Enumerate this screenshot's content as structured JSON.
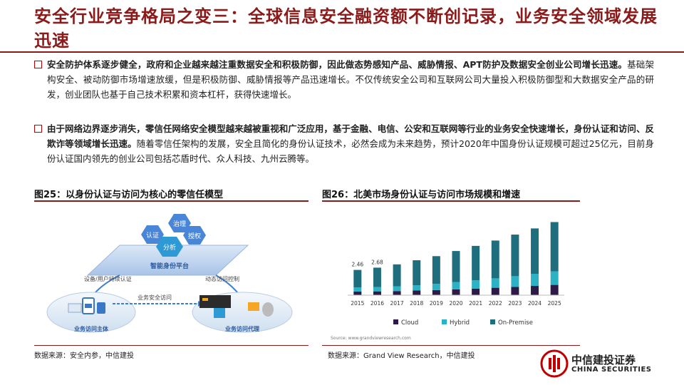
{
  "header": {
    "title": "安全行业竞争格局之变三：全球信息安全融资额不断创记录，业务安全领域发展迅速"
  },
  "bullets": [
    {
      "bold": "安全防护体系逐步健全，政府和企业越来越注重数据安全和积极防御，因此做态势感知产品、威胁情报、APT防护及数据安全创业公司增长迅速。",
      "normal": "基础架构安全、被动防御市场增速放缓，但是积极防御、威胁情报等产品迅速增长。不仅传统安全公司和互联网公司大量投入积极防御型和大数据安全产品的研发，创业团队也基于自己技术积累和资本杠杆，获得快速增长。"
    },
    {
      "bold": "由于网络边界逐步消失，零信任网络安全模型越来越被重视和广泛应用，基于金融、电信、公安和互联网等行业的业务安全快速增长，身份认证和访问、反欺诈等领域增长迅速。",
      "normal": "随着零信任架构的发展，安全且简化的身份认证技术，必然会成为未来趋势，预计2020年中国身份认证规模可超过25亿元，目前身份认证国内领先的创业公司包括芯盾时代、众人科技、九州云腾等。"
    }
  ],
  "figure_left": {
    "title": "图25：以身份认证与访问为核心的零信任模型",
    "labels": {
      "govern": "治理",
      "auth": "认证",
      "authorize": "授权",
      "analyze": "分析",
      "platform": "智能身份平台",
      "device_user": "设备/用户持续认证",
      "dynamic": "动态访问控制",
      "business_access": "业务安全访问",
      "subject": "业务访问主体",
      "proxy": "业务访问代理"
    },
    "source": "数据来源：安全内参，中信建投"
  },
  "figure_right": {
    "title": "图26：北美市场身份认证与访问市场规模和增速",
    "source": "数据来源：Grand View Research，中信建投",
    "footnote": "Source: www.grandviewresearch.com"
  },
  "chart_data": {
    "type": "bar",
    "stacked": true,
    "categories": [
      "2015",
      "2016",
      "2017",
      "2018",
      "2019",
      "2020",
      "2021",
      "2022",
      "2023",
      "2024",
      "2025"
    ],
    "series": [
      {
        "name": "Cloud",
        "color": "#2e1a47",
        "values": [
          0.35,
          0.37,
          0.4,
          0.45,
          0.5,
          0.57,
          0.64,
          0.72,
          0.8,
          0.9,
          1.0
        ]
      },
      {
        "name": "Hybrid",
        "color": "#2bb3c5",
        "values": [
          0.4,
          0.42,
          0.46,
          0.52,
          0.6,
          0.7,
          0.8,
          0.92,
          1.05,
          1.18,
          1.32
        ]
      },
      {
        "name": "On-Premise",
        "color": "#1f6e7e",
        "values": [
          1.71,
          1.89,
          2.14,
          2.43,
          2.7,
          3.03,
          3.36,
          3.68,
          4.05,
          4.42,
          4.8
        ]
      }
    ],
    "data_labels": {
      "2015": "2.46",
      "2016": "2.68"
    },
    "ylim": [
      0,
      7.5
    ],
    "legend": "bottom",
    "grid": false
  },
  "brand": {
    "name_cn": "中信建投证券",
    "name_en": "CHINA SECURITIES",
    "color": "#c00000"
  }
}
